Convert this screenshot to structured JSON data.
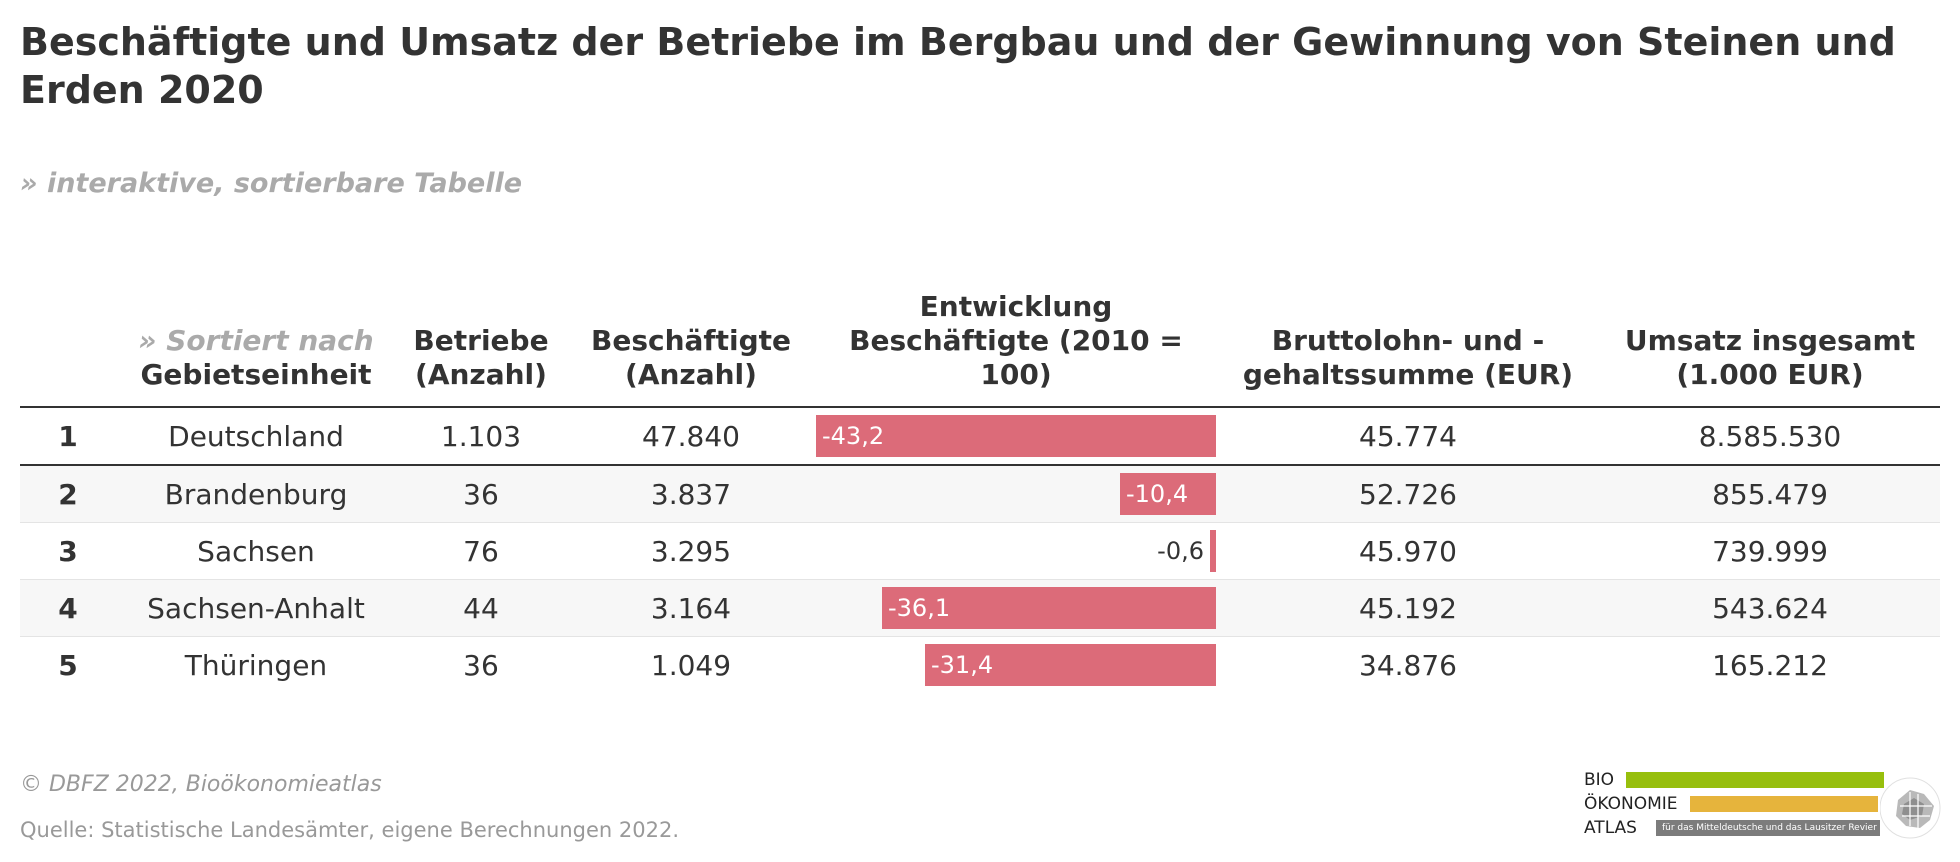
{
  "title": "Beschäftigte und Umsatz der Betriebe im Bergbau und der Gewinnung von Steinen und Erden 2020",
  "subtitle": "» interaktive, sortierbare Tabelle",
  "table": {
    "sort_hint": "» Sortiert nach",
    "headers": {
      "region": "Gebietseinheit",
      "betriebe": "Betriebe (Anzahl)",
      "beschaeftigte": "Beschäftigte (Anzahl)",
      "entwicklung": "Entwicklung Beschäftigte (2010 = 100)",
      "lohn": "Bruttolohn- und - gehaltssumme (EUR)",
      "umsatz": "Umsatz insgesamt (1.000 EUR)"
    },
    "rows": [
      {
        "rank": "1",
        "region": "Deutschland",
        "betriebe": "1.103",
        "beschaeftigte": "47.840",
        "entwicklung": "-43,2",
        "lohn": "45.774",
        "umsatz": "8.585.530"
      },
      {
        "rank": "2",
        "region": "Brandenburg",
        "betriebe": "36",
        "beschaeftigte": "3.837",
        "entwicklung": "-10,4",
        "lohn": "52.726",
        "umsatz": "855.479"
      },
      {
        "rank": "3",
        "region": "Sachsen",
        "betriebe": "76",
        "beschaeftigte": "3.295",
        "entwicklung": "-0,6",
        "lohn": "45.970",
        "umsatz": "739.999"
      },
      {
        "rank": "4",
        "region": "Sachsen-Anhalt",
        "betriebe": "44",
        "beschaeftigte": "3.164",
        "entwicklung": "-36,1",
        "lohn": "45.192",
        "umsatz": "543.624"
      },
      {
        "rank": "5",
        "region": "Thüringen",
        "betriebe": "36",
        "beschaeftigte": "1.049",
        "entwicklung": "-31,4",
        "lohn": "34.876",
        "umsatz": "165.212"
      }
    ]
  },
  "chart_data": {
    "type": "table",
    "title": "Beschäftigte und Umsatz der Betriebe im Bergbau und der Gewinnung von Steinen und Erden 2020",
    "columns": [
      "Gebietseinheit",
      "Betriebe (Anzahl)",
      "Beschäftigte (Anzahl)",
      "Entwicklung Beschäftigte (2010 = 100)",
      "Bruttolohn- und - gehaltssumme (EUR)",
      "Umsatz insgesamt (1.000 EUR)"
    ],
    "categories": [
      "Deutschland",
      "Brandenburg",
      "Sachsen",
      "Sachsen-Anhalt",
      "Thüringen"
    ],
    "series": [
      {
        "name": "Betriebe (Anzahl)",
        "values": [
          1103,
          36,
          76,
          44,
          36
        ]
      },
      {
        "name": "Beschäftigte (Anzahl)",
        "values": [
          47840,
          3837,
          3295,
          3164,
          1049
        ]
      },
      {
        "name": "Entwicklung Beschäftigte (2010 = 100)",
        "values": [
          -43.2,
          -10.4,
          -0.6,
          -36.1,
          -31.4
        ]
      },
      {
        "name": "Bruttolohn- und - gehaltssumme (EUR)",
        "values": [
          45774,
          52726,
          45970,
          45192,
          34876
        ]
      },
      {
        "name": "Umsatz insgesamt (1.000 EUR)",
        "values": [
          8585530,
          855479,
          739999,
          543624,
          165212
        ]
      }
    ],
    "bar_column": "Entwicklung Beschäftigte (2010 = 100)",
    "bar_domain": [
      -43.2,
      0
    ],
    "bar_color": "#dc6b79"
  },
  "footer": {
    "copyright": "© DBFZ 2022, Bioökonomieatlas",
    "source": "Quelle: Statistische Landesämter, eigene Berechnungen 2022."
  },
  "logo": {
    "word1": "BIO",
    "word2": "ÖKONOMIE",
    "word3": "ATLAS",
    "tagline": "für das Mitteldeutsche und das Lausitzer Revier",
    "colors": {
      "green": "#97bf0d",
      "yellow": "#e6b43c",
      "grey": "#7c7c7c"
    }
  },
  "colors": {
    "bar": "#dc6b79",
    "muted": "#aaaaaa",
    "text": "#333333"
  }
}
